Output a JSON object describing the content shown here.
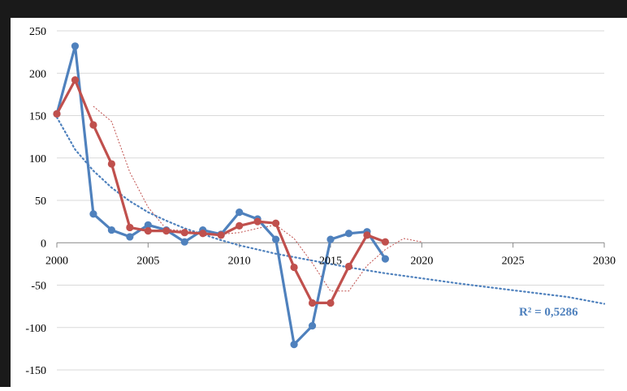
{
  "chart_data": {
    "type": "line",
    "title": "",
    "xlabel": "",
    "ylabel": "",
    "xlim": [
      2000,
      2030
    ],
    "ylim": [
      -150,
      250
    ],
    "x_ticks": [
      2000,
      2005,
      2010,
      2015,
      2020,
      2025,
      2030
    ],
    "y_ticks": [
      250,
      200,
      150,
      100,
      50,
      0,
      -50,
      -100,
      -150
    ],
    "x_tick_labels": [
      "2000",
      "2005",
      "2010",
      "2015",
      "2020",
      "2025",
      "2030"
    ],
    "y_tick_labels": [
      "250",
      "200",
      "150",
      "100",
      "50",
      "0",
      "-50",
      "-100",
      "-150"
    ],
    "grid": "horizontal",
    "series": [
      {
        "color": "#4F81BD",
        "x": [
          2000,
          2001,
          2002,
          2003,
          2004,
          2005,
          2006,
          2007,
          2008,
          2009,
          2010,
          2011,
          2012,
          2013,
          2014,
          2015,
          2016,
          2017,
          2018
        ],
        "y": [
          152,
          232,
          34,
          15,
          7,
          21,
          15,
          1,
          15,
          10,
          36,
          28,
          4,
          -120,
          -98,
          4,
          11,
          13,
          -19
        ]
      },
      {
        "color": "#C0504D",
        "x": [
          2000,
          2001,
          2002,
          2003,
          2004,
          2005,
          2006,
          2007,
          2008,
          2009,
          2010,
          2011,
          2012,
          2013,
          2014,
          2015,
          2016,
          2017,
          2018
        ],
        "y": [
          152,
          192,
          139,
          93,
          18,
          14,
          14,
          12,
          11,
          9,
          20,
          25,
          23,
          -29,
          -71,
          -71,
          -28,
          9,
          1
        ]
      }
    ],
    "trendlines": [
      {
        "kind": "moving-average",
        "color": "#C0504D",
        "x": [
          2002,
          2003,
          2004,
          2005,
          2006,
          2007,
          2008,
          2009,
          2010,
          2011,
          2012,
          2013,
          2014,
          2015,
          2016,
          2017,
          2018,
          2019,
          2020
        ],
        "y": [
          161,
          143,
          83,
          42,
          16,
          14,
          12,
          10,
          12,
          17,
          21,
          5,
          -24,
          -57,
          -57,
          -27,
          -8,
          5,
          1
        ]
      },
      {
        "kind": "fit",
        "color": "#4F81BD",
        "x": [
          2000,
          2001,
          2002,
          2003,
          2004,
          2005,
          2006,
          2007,
          2008,
          2009,
          2010,
          2012,
          2014,
          2016,
          2018,
          2020,
          2022,
          2025,
          2028,
          2030
        ],
        "y": [
          148,
          110,
          85,
          65,
          49,
          36,
          26,
          17,
          10,
          3,
          -3,
          -13,
          -21,
          -29,
          -36,
          -42,
          -48,
          -56,
          -64,
          -72
        ]
      }
    ],
    "annotation": {
      "text": "R² = 0,5286",
      "color": "#4F81BD"
    }
  }
}
